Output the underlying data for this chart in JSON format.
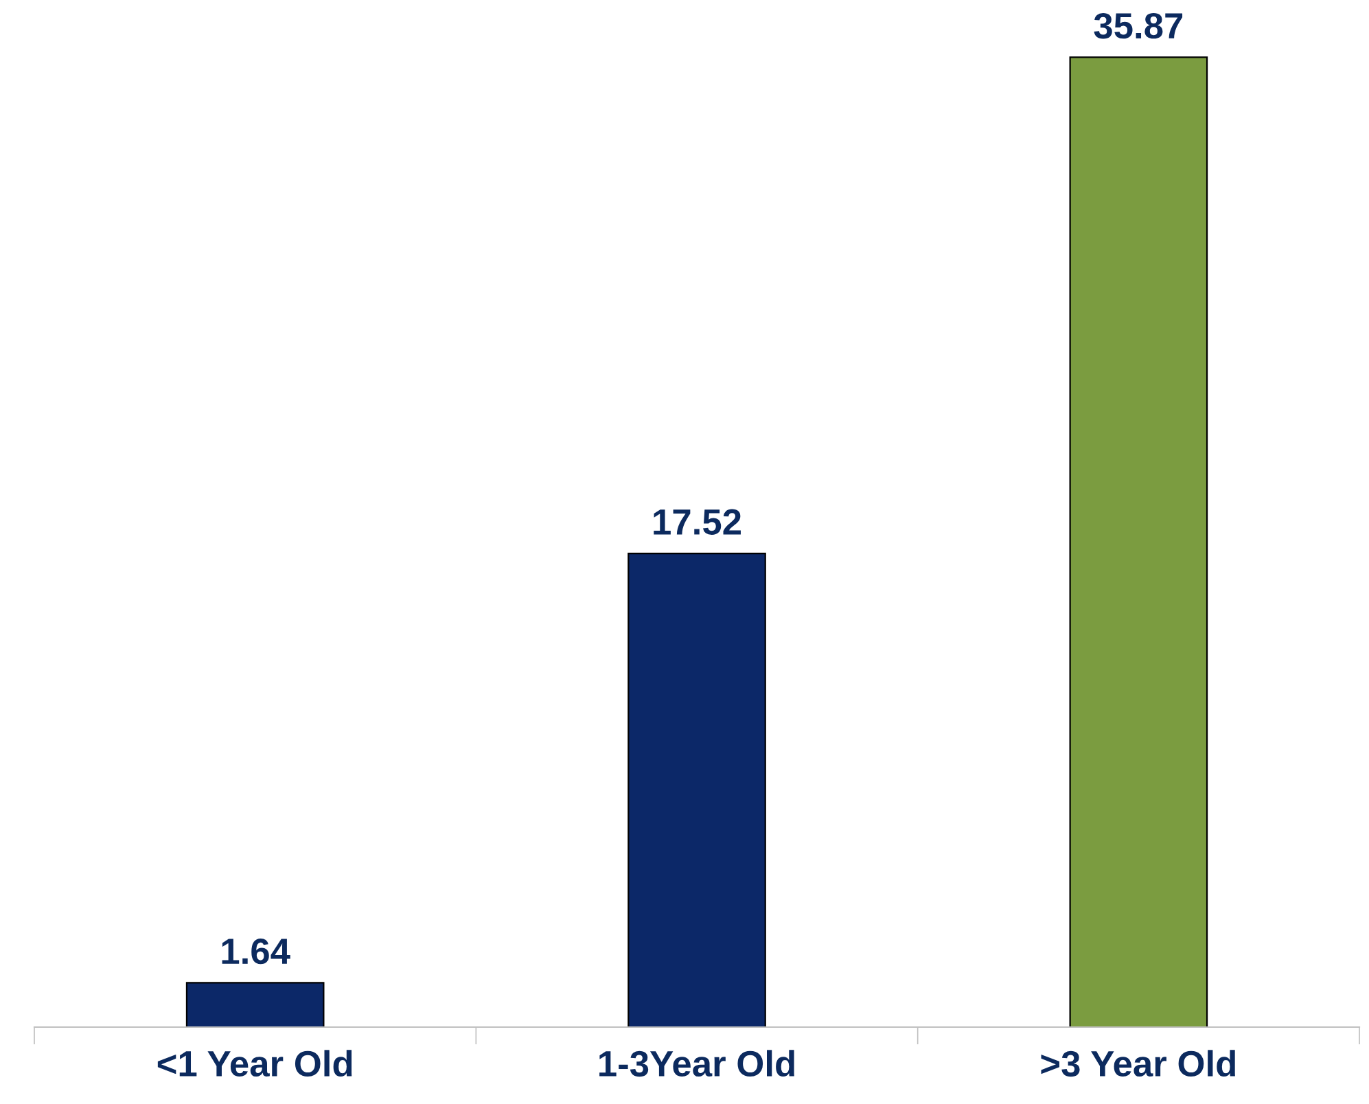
{
  "chart_data": {
    "type": "bar",
    "categories": [
      "<1 Year Old",
      "1-3Year Old",
      ">3 Year Old"
    ],
    "values": [
      1.64,
      17.52,
      35.87
    ],
    "colors": [
      "#0c2868",
      "#0c2868",
      "#7b9c40"
    ],
    "tick_labels": "x",
    "data_labels": true,
    "grid": false,
    "legend": false
  }
}
